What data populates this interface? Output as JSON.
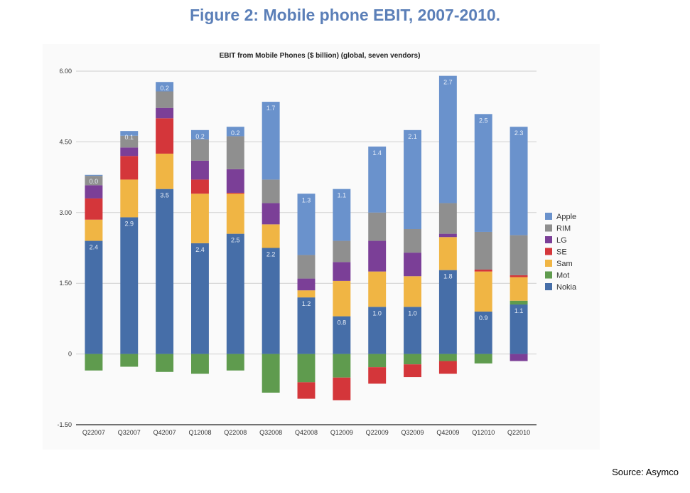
{
  "figure_title": "Figure 2: Mobile phone EBIT, 2007-2010.",
  "source": "Source: Asymco",
  "chart_data": {
    "type": "bar",
    "stacked": true,
    "title": "EBIT from Mobile Phones ($ billion) (global, seven vendors)",
    "xlabel": "",
    "ylabel": "",
    "ylim": [
      -1.5,
      6.0
    ],
    "yticks": [
      -1.5,
      0,
      1.5,
      3.0,
      4.5,
      6.0
    ],
    "ytick_labels": [
      "-1.50",
      "0",
      "1.50",
      "3.00",
      "4.50",
      "6.00"
    ],
    "grid": true,
    "legend_position": "right",
    "categories": [
      "Q22007",
      "Q32007",
      "Q42007",
      "Q12008",
      "Q22008",
      "Q32008",
      "Q42008",
      "Q12009",
      "Q22009",
      "Q32009",
      "Q42009",
      "Q12010",
      "Q22010"
    ],
    "series": [
      {
        "name": "Nokia",
        "color": "#466ea8",
        "values": [
          2.4,
          2.9,
          3.5,
          2.35,
          2.55,
          2.25,
          1.2,
          0.8,
          1.0,
          1.0,
          1.78,
          0.9,
          1.05
        ],
        "labels": [
          "2.4",
          "2.9",
          "3.5",
          "2.4",
          "2.5",
          "2.2",
          "1.2",
          "0.8",
          "1.0",
          "1.0",
          "1.8",
          "0.9",
          "1.1"
        ]
      },
      {
        "name": "Mot",
        "color": "#5f9b4e",
        "values": [
          -0.35,
          -0.27,
          -0.38,
          -0.42,
          -0.35,
          -0.82,
          -0.6,
          -0.5,
          -0.28,
          -0.22,
          -0.15,
          -0.2,
          0.08
        ]
      },
      {
        "name": "Sam",
        "color": "#f0b544",
        "values": [
          0.45,
          0.8,
          0.75,
          1.05,
          0.85,
          0.5,
          0.15,
          0.75,
          0.75,
          0.65,
          0.7,
          0.85,
          0.5
        ]
      },
      {
        "name": "SE",
        "color": "#d4363a",
        "values": [
          0.45,
          0.5,
          0.75,
          0.3,
          0.02,
          0.0,
          -0.35,
          -0.48,
          -0.35,
          -0.27,
          -0.27,
          0.04,
          0.04
        ]
      },
      {
        "name": "LG",
        "color": "#7b3f97",
        "values": [
          0.28,
          0.18,
          0.22,
          0.4,
          0.5,
          0.45,
          0.25,
          0.4,
          0.65,
          0.5,
          0.07,
          0.0,
          -0.15
        ]
      },
      {
        "name": "RIM",
        "color": "#8f8f8f",
        "values": [
          0.2,
          0.25,
          0.35,
          0.45,
          0.7,
          0.5,
          0.5,
          0.45,
          0.6,
          0.5,
          0.65,
          0.8,
          0.85
        ]
      },
      {
        "name": "Apple",
        "color": "#6a92cc",
        "values": [
          0.02,
          0.1,
          0.2,
          0.2,
          0.2,
          1.65,
          1.3,
          1.1,
          1.4,
          2.1,
          2.7,
          2.5,
          2.3
        ],
        "labels": [
          "0.0",
          "0.1",
          "0.2",
          "0.2",
          "0.2",
          "1.7",
          "1.3",
          "1.1",
          "1.4",
          "2.1",
          "2.7",
          "2.5",
          "2.3"
        ]
      }
    ],
    "legend_order": [
      "Apple",
      "RIM",
      "LG",
      "SE",
      "Sam",
      "Mot",
      "Nokia"
    ]
  }
}
